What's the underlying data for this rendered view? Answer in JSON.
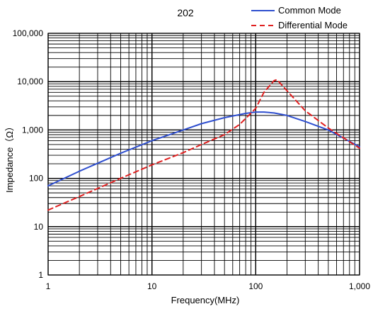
{
  "chart_data": {
    "type": "line",
    "title": "202",
    "xlabel": "Frequency(MHz)",
    "ylabel": "Impedance（Ω）",
    "xscale": "log",
    "yscale": "log",
    "xlim": [
      1,
      1000
    ],
    "ylim": [
      1,
      100000
    ],
    "grid": true,
    "legend_position": "top-right",
    "x_tick_labels": [
      "1",
      "10",
      "100",
      "1,000"
    ],
    "y_tick_labels": [
      "1",
      "10",
      "100",
      "1,000",
      "10,000",
      "100,000"
    ],
    "series": [
      {
        "name": "Common Mode",
        "color": "#2f4fcf",
        "style": "solid",
        "x": [
          1,
          2,
          5,
          10,
          20,
          30,
          50,
          80,
          100,
          120,
          150,
          200,
          300,
          500,
          1000
        ],
        "y": [
          70,
          140,
          330,
          600,
          1000,
          1350,
          1800,
          2200,
          2350,
          2350,
          2250,
          2000,
          1500,
          1000,
          450
        ]
      },
      {
        "name": "Differential Mode",
        "color": "#e02020",
        "style": "dashed",
        "x": [
          1,
          2,
          5,
          10,
          20,
          30,
          50,
          70,
          100,
          120,
          150,
          160,
          200,
          300,
          500,
          1000
        ],
        "y": [
          22,
          42,
          100,
          190,
          340,
          500,
          800,
          1300,
          2800,
          6000,
          10500,
          11000,
          6500,
          2500,
          1100,
          420
        ]
      }
    ]
  }
}
